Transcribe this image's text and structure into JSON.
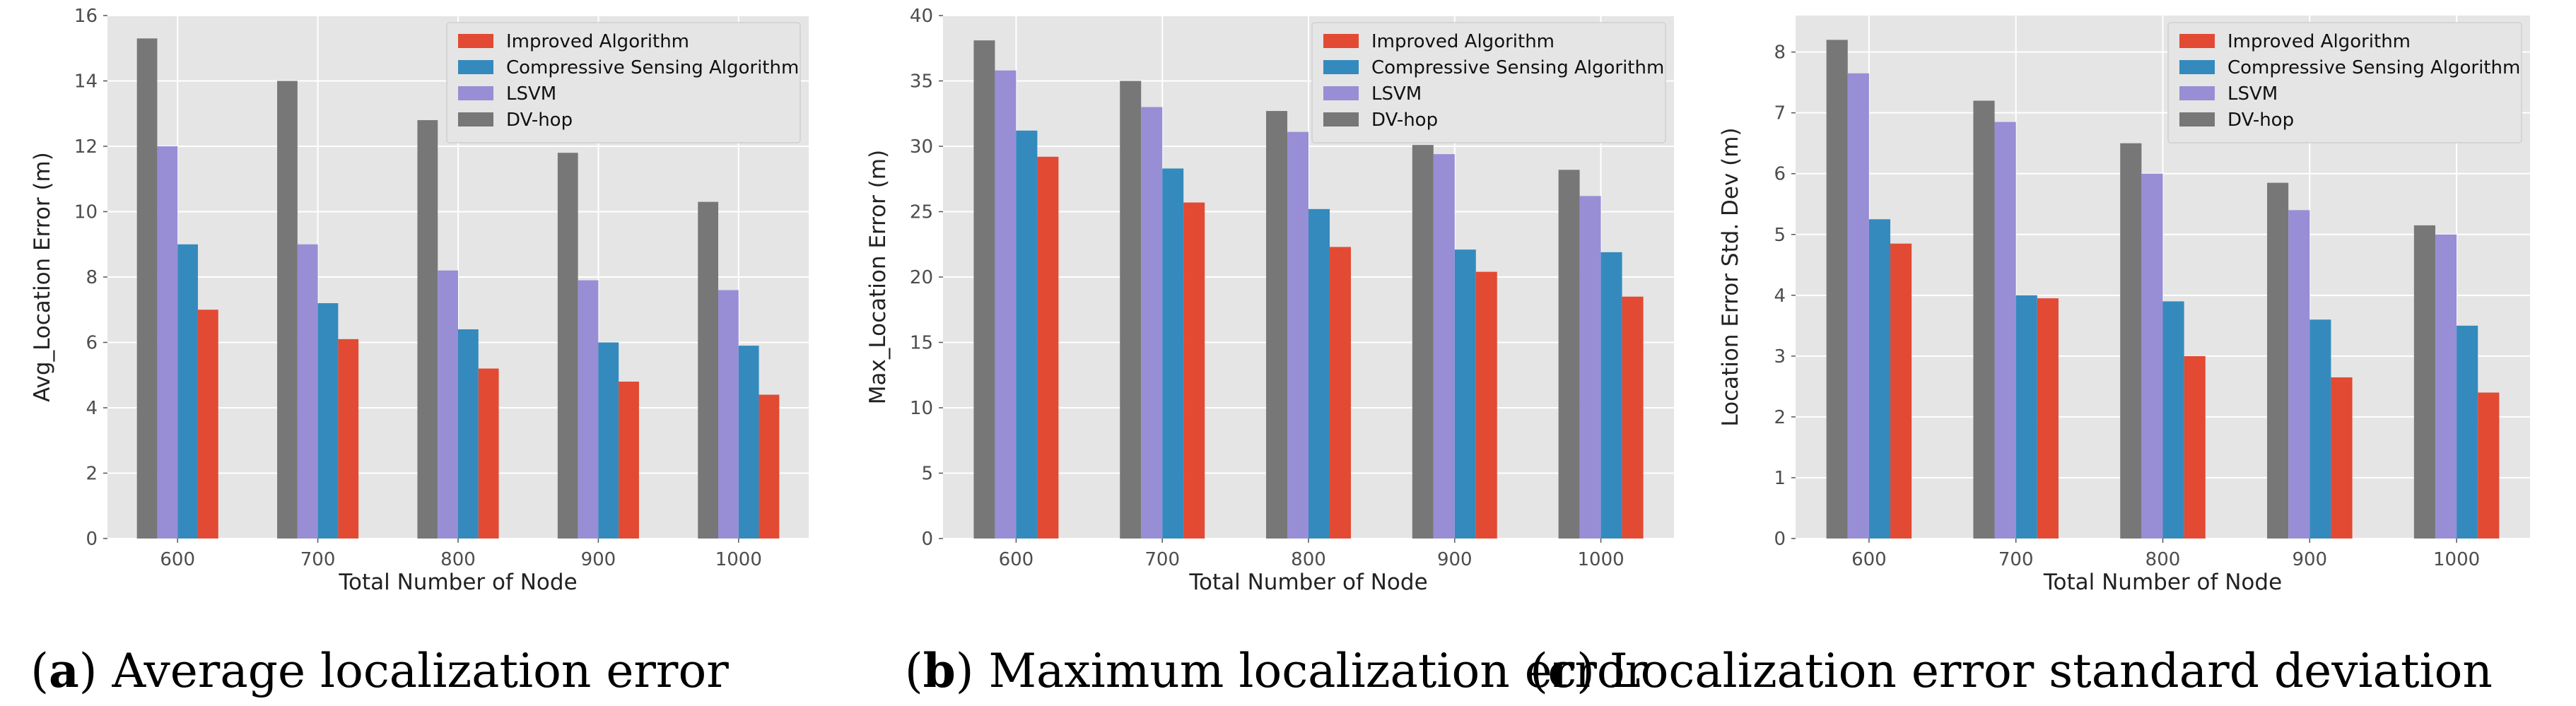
{
  "colors": {
    "plot_bg": "#e5e5e5",
    "grid": "#ffffff",
    "Improved Algorithm": "#e24a33",
    "Compressive Sensing Algorithm": "#348abd",
    "LSVM": "#988ed5",
    "DV-hop": "#777777"
  },
  "chart_data": [
    {
      "type": "bar",
      "panel_letter": "a",
      "caption": "Average localization error",
      "xlabel": "Total Number of Node",
      "ylabel": "Avg_Location Error (m)",
      "categories": [
        "600",
        "700",
        "800",
        "900",
        "1000"
      ],
      "ylim": [
        0,
        16
      ],
      "yticks": [
        0,
        2,
        4,
        6,
        8,
        10,
        12,
        14,
        16
      ],
      "legend_position": "top-right",
      "series": [
        {
          "name": "Improved Algorithm",
          "values": [
            7.0,
            6.1,
            5.2,
            4.8,
            4.4
          ]
        },
        {
          "name": "Compressive Sensing Algorithm",
          "values": [
            9.0,
            7.2,
            6.4,
            6.0,
            5.9
          ]
        },
        {
          "name": "LSVM",
          "values": [
            12.0,
            9.0,
            8.2,
            7.9,
            7.6
          ]
        },
        {
          "name": "DV-hop",
          "values": [
            15.3,
            14.0,
            12.8,
            11.8,
            10.3
          ]
        }
      ]
    },
    {
      "type": "bar",
      "panel_letter": "b",
      "caption": "Maximum localization error",
      "xlabel": "Total Number of Node",
      "ylabel": "Max_Location Error (m)",
      "categories": [
        "600",
        "700",
        "800",
        "900",
        "1000"
      ],
      "ylim": [
        0,
        40
      ],
      "yticks": [
        0,
        5,
        10,
        15,
        20,
        25,
        30,
        35,
        40
      ],
      "legend_position": "top-right",
      "series": [
        {
          "name": "Improved Algorithm",
          "values": [
            29.2,
            25.7,
            22.3,
            20.4,
            18.5
          ]
        },
        {
          "name": "Compressive Sensing Algorithm",
          "values": [
            31.2,
            28.3,
            25.2,
            22.1,
            21.9
          ]
        },
        {
          "name": "LSVM",
          "values": [
            35.8,
            33.0,
            31.1,
            29.4,
            26.2
          ]
        },
        {
          "name": "DV-hop",
          "values": [
            38.1,
            35.0,
            32.7,
            30.1,
            28.2
          ]
        }
      ]
    },
    {
      "type": "bar",
      "panel_letter": "c",
      "caption": "Localization error standard deviation",
      "xlabel": "Total Number of Node",
      "ylabel": "Location Error Std. Dev (m)",
      "categories": [
        "600",
        "700",
        "800",
        "900",
        "1000"
      ],
      "ylim": [
        0,
        8.6
      ],
      "yticks": [
        0,
        1,
        2,
        3,
        4,
        5,
        6,
        7,
        8
      ],
      "legend_position": "top-right",
      "series": [
        {
          "name": "Improved Algorithm",
          "values": [
            4.85,
            3.95,
            3.0,
            2.65,
            2.4
          ]
        },
        {
          "name": "Compressive Sensing Algorithm",
          "values": [
            5.25,
            4.0,
            3.9,
            3.6,
            3.5
          ]
        },
        {
          "name": "LSVM",
          "values": [
            7.65,
            6.85,
            6.0,
            5.4,
            5.0
          ]
        },
        {
          "name": "DV-hop",
          "values": [
            8.2,
            7.2,
            6.5,
            5.85,
            5.15
          ]
        }
      ]
    }
  ]
}
